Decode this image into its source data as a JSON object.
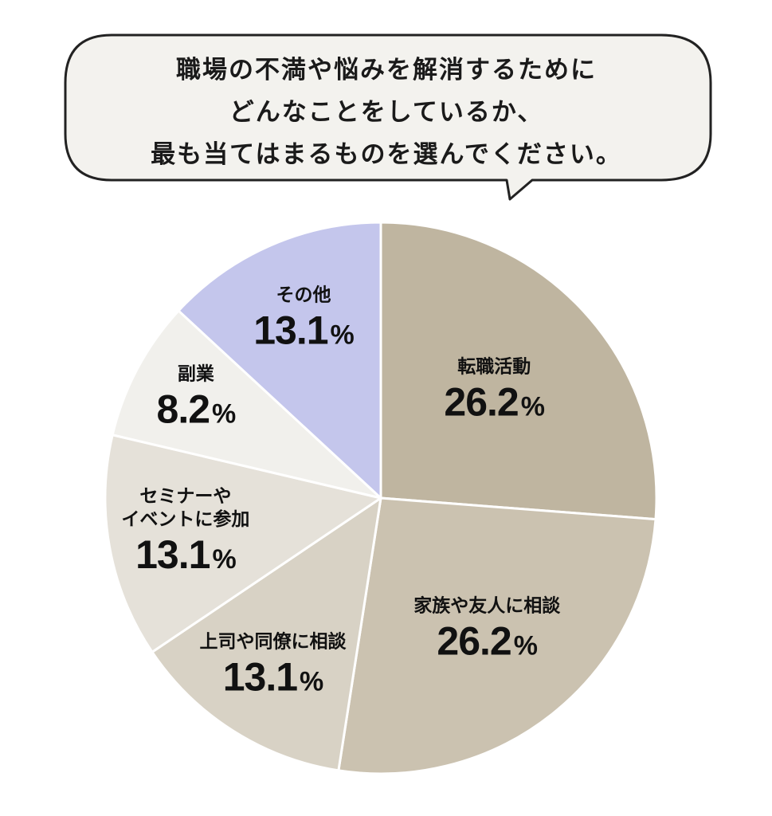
{
  "question": {
    "lines": [
      "職場の不満や悩みを解消するために",
      "どんなことをしているか、",
      "最も当てはまるものを選んでください。"
    ]
  },
  "colors": {
    "bubble_fill": "#f3f2ee",
    "bubble_stroke": "#222222",
    "slice_border": "#ffffff"
  },
  "chart_data": {
    "type": "pie",
    "title": "",
    "unit": "%",
    "slices": [
      {
        "label": "転職活動",
        "value": 26.2,
        "value_label": "26.2",
        "color": "#bfb5a0"
      },
      {
        "label": "家族や友人に相談",
        "value": 26.2,
        "value_label": "26.2",
        "color": "#cbc2b0"
      },
      {
        "label": "上司や同僚に相談",
        "value": 13.1,
        "value_label": "13.1",
        "color": "#d8d2c5"
      },
      {
        "label": "セミナーや\nイベントに参加",
        "value": 13.1,
        "value_label": "13.1",
        "color": "#e5e1d9"
      },
      {
        "label": "副業",
        "value": 8.2,
        "value_label": "8.2",
        "color": "#f1f0ec"
      },
      {
        "label": "その他",
        "value": 13.1,
        "value_label": "13.1",
        "color": "#c4c6ec"
      }
    ]
  }
}
